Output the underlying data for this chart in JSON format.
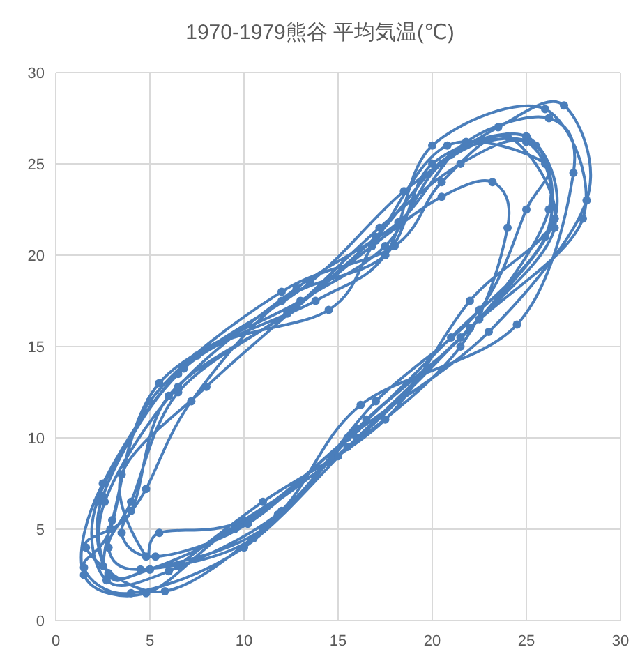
{
  "chart_data": {
    "type": "line",
    "title": "1970-1979熊谷 平均気温(℃)",
    "x": [
      2.5,
      3.0,
      5.5,
      13.0,
      17.5,
      20.5,
      25.0,
      26.5,
      22.0,
      16.0,
      10.5,
      4.5,
      2.8,
      4.0,
      6.5,
      12.5,
      17.0,
      21.0,
      25.5,
      26.0,
      21.0,
      15.5,
      10.0,
      5.5,
      4.8,
      3.5,
      8.0,
      12.8,
      17.2,
      21.5,
      25.0,
      26.2,
      22.5,
      16.5,
      11.0,
      5.0,
      2.8,
      2.5,
      6.8,
      13.8,
      17.5,
      20.0,
      26.0,
      28.0,
      22.0,
      16.0,
      10.0,
      4.0,
      1.5,
      2.9,
      5.0,
      12.0,
      18.0,
      20.5,
      24.0,
      26.5,
      21.5,
      15.5,
      9.5,
      5.0,
      2.8,
      2.6,
      6.5,
      12.8,
      18.2,
      21.8,
      26.2,
      27.5,
      24.5,
      16.2,
      11.8,
      5.8,
      1.6,
      4.0,
      6.0,
      12.3,
      16.8,
      20.5,
      23.2,
      24.0,
      21.5,
      15.0,
      9.0,
      4.8,
      1.5,
      2.5,
      7.5,
      14.5,
      17.0,
      20.8,
      26.0,
      25.0,
      22.5,
      17.0,
      12.0,
      6.0,
      2.7,
      2.2,
      6.5,
      13.5,
      18.5,
      23.5,
      27.0,
      28.2,
      23.0,
      15.8,
      10.2,
      5.3,
      3.5,
      4.8,
      7.2,
      12.0,
      17.5,
      20.0,
      25.0,
      26.5,
      22.0,
      17.5,
      11.0,
      6.5
    ],
    "series": [
      {
        "color": "#4a7ebb",
        "values": [
          3.0,
          5.5,
          13.0,
          17.5,
          20.5,
          25.0,
          26.5,
          22.0,
          16.0,
          10.5,
          4.5,
          2.8,
          4.0,
          6.5,
          12.5,
          17.0,
          21.0,
          25.5,
          26.0,
          21.0,
          15.5,
          10.0,
          5.5,
          4.8,
          3.5,
          8.0,
          12.8,
          17.2,
          21.5,
          25.0,
          26.2,
          22.5,
          16.5,
          11.0,
          5.0,
          2.8,
          2.5,
          6.8,
          13.8,
          17.5,
          20.0,
          26.0,
          28.0,
          22.0,
          16.0,
          10.0,
          4.0,
          1.5,
          2.9,
          5.0,
          12.0,
          18.0,
          20.5,
          24.0,
          26.5,
          21.5,
          15.5,
          9.5,
          5.0,
          2.8,
          2.6,
          6.5,
          12.8,
          18.2,
          21.8,
          26.2,
          27.5,
          24.5,
          16.2,
          11.8,
          5.8,
          1.6,
          4.0,
          6.0,
          12.3,
          16.8,
          20.5,
          23.2,
          24.0,
          21.5,
          15.0,
          9.0,
          4.8,
          1.5,
          2.5,
          7.5,
          14.5,
          17.0,
          20.8,
          26.0,
          25.0,
          22.5,
          17.0,
          12.0,
          6.0,
          2.7,
          2.2,
          6.5,
          13.5,
          18.5,
          23.5,
          27.0,
          28.2,
          23.0,
          15.8,
          10.2,
          5.3,
          3.5,
          4.8,
          7.2,
          12.0,
          17.5,
          20.0,
          25.0,
          26.5,
          22.0,
          17.5,
          11.0,
          6.5,
          3.0
        ]
      }
    ],
    "xlim": [
      0,
      30
    ],
    "ylim": [
      0,
      30
    ],
    "xticks": [
      0,
      5,
      10,
      15,
      20,
      25,
      30
    ],
    "yticks": [
      0,
      5,
      10,
      15,
      20,
      25,
      30
    ],
    "grid": true,
    "marker": "circle",
    "line_style": "solid"
  }
}
